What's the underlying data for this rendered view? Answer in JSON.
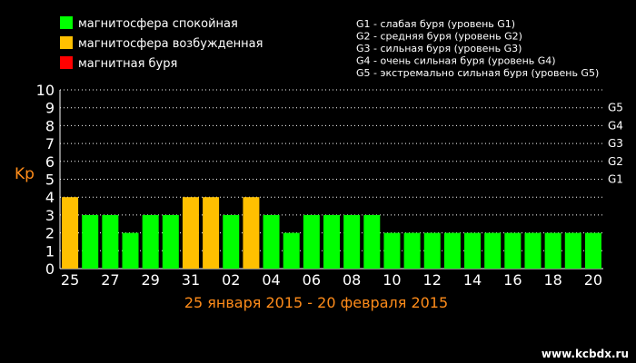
{
  "legend": [
    {
      "label": "магнитосфера спокойная",
      "color": "#00ff00"
    },
    {
      "label": "магнитосфера возбужденная",
      "color": "#ffc000"
    },
    {
      "label": "магнитная буря",
      "color": "#ff0000"
    }
  ],
  "storm_levels": [
    "G1 - слабая буря (уровень G1)",
    "G2 - средняя буря (уровень G2)",
    "G3 - сильная буря (уровень G3)",
    "G4 - очень сильная буря (уровень G4)",
    "G5 - экстремально сильная буря (уровень G5)"
  ],
  "watermark": "www.kcbdx.ru",
  "chart_data": {
    "type": "bar",
    "title": "",
    "xlabel": "25 января 2015 - 20 февраля 2015",
    "ylabel": "Kp",
    "ylim": [
      0,
      10
    ],
    "yticks": [
      "0",
      "1",
      "2",
      "3",
      "4",
      "5",
      "6",
      "7",
      "8",
      "9",
      "10"
    ],
    "right_ticks": [
      {
        "label": "G1",
        "level": 5
      },
      {
        "label": "G2",
        "level": 6
      },
      {
        "label": "G3",
        "level": 7
      },
      {
        "label": "G4",
        "level": 8
      },
      {
        "label": "G5",
        "level": 9
      }
    ],
    "x_tick_labels": [
      "25",
      "27",
      "29",
      "31",
      "02",
      "04",
      "06",
      "08",
      "10",
      "12",
      "14",
      "16",
      "18",
      "20"
    ],
    "categories": [
      "25",
      "26",
      "27",
      "28",
      "29",
      "30",
      "31",
      "01",
      "02",
      "03",
      "04",
      "05",
      "06",
      "07",
      "08",
      "09",
      "10",
      "11",
      "12",
      "13",
      "14",
      "15",
      "16",
      "17",
      "18",
      "19",
      "20"
    ],
    "values": [
      4,
      3,
      3,
      2,
      3,
      3,
      4,
      4,
      3,
      4,
      3,
      2,
      3,
      3,
      3,
      3,
      2,
      2,
      2,
      2,
      2,
      2,
      2,
      2,
      2,
      2,
      2
    ],
    "grid": true,
    "legend_position": "top-left"
  }
}
